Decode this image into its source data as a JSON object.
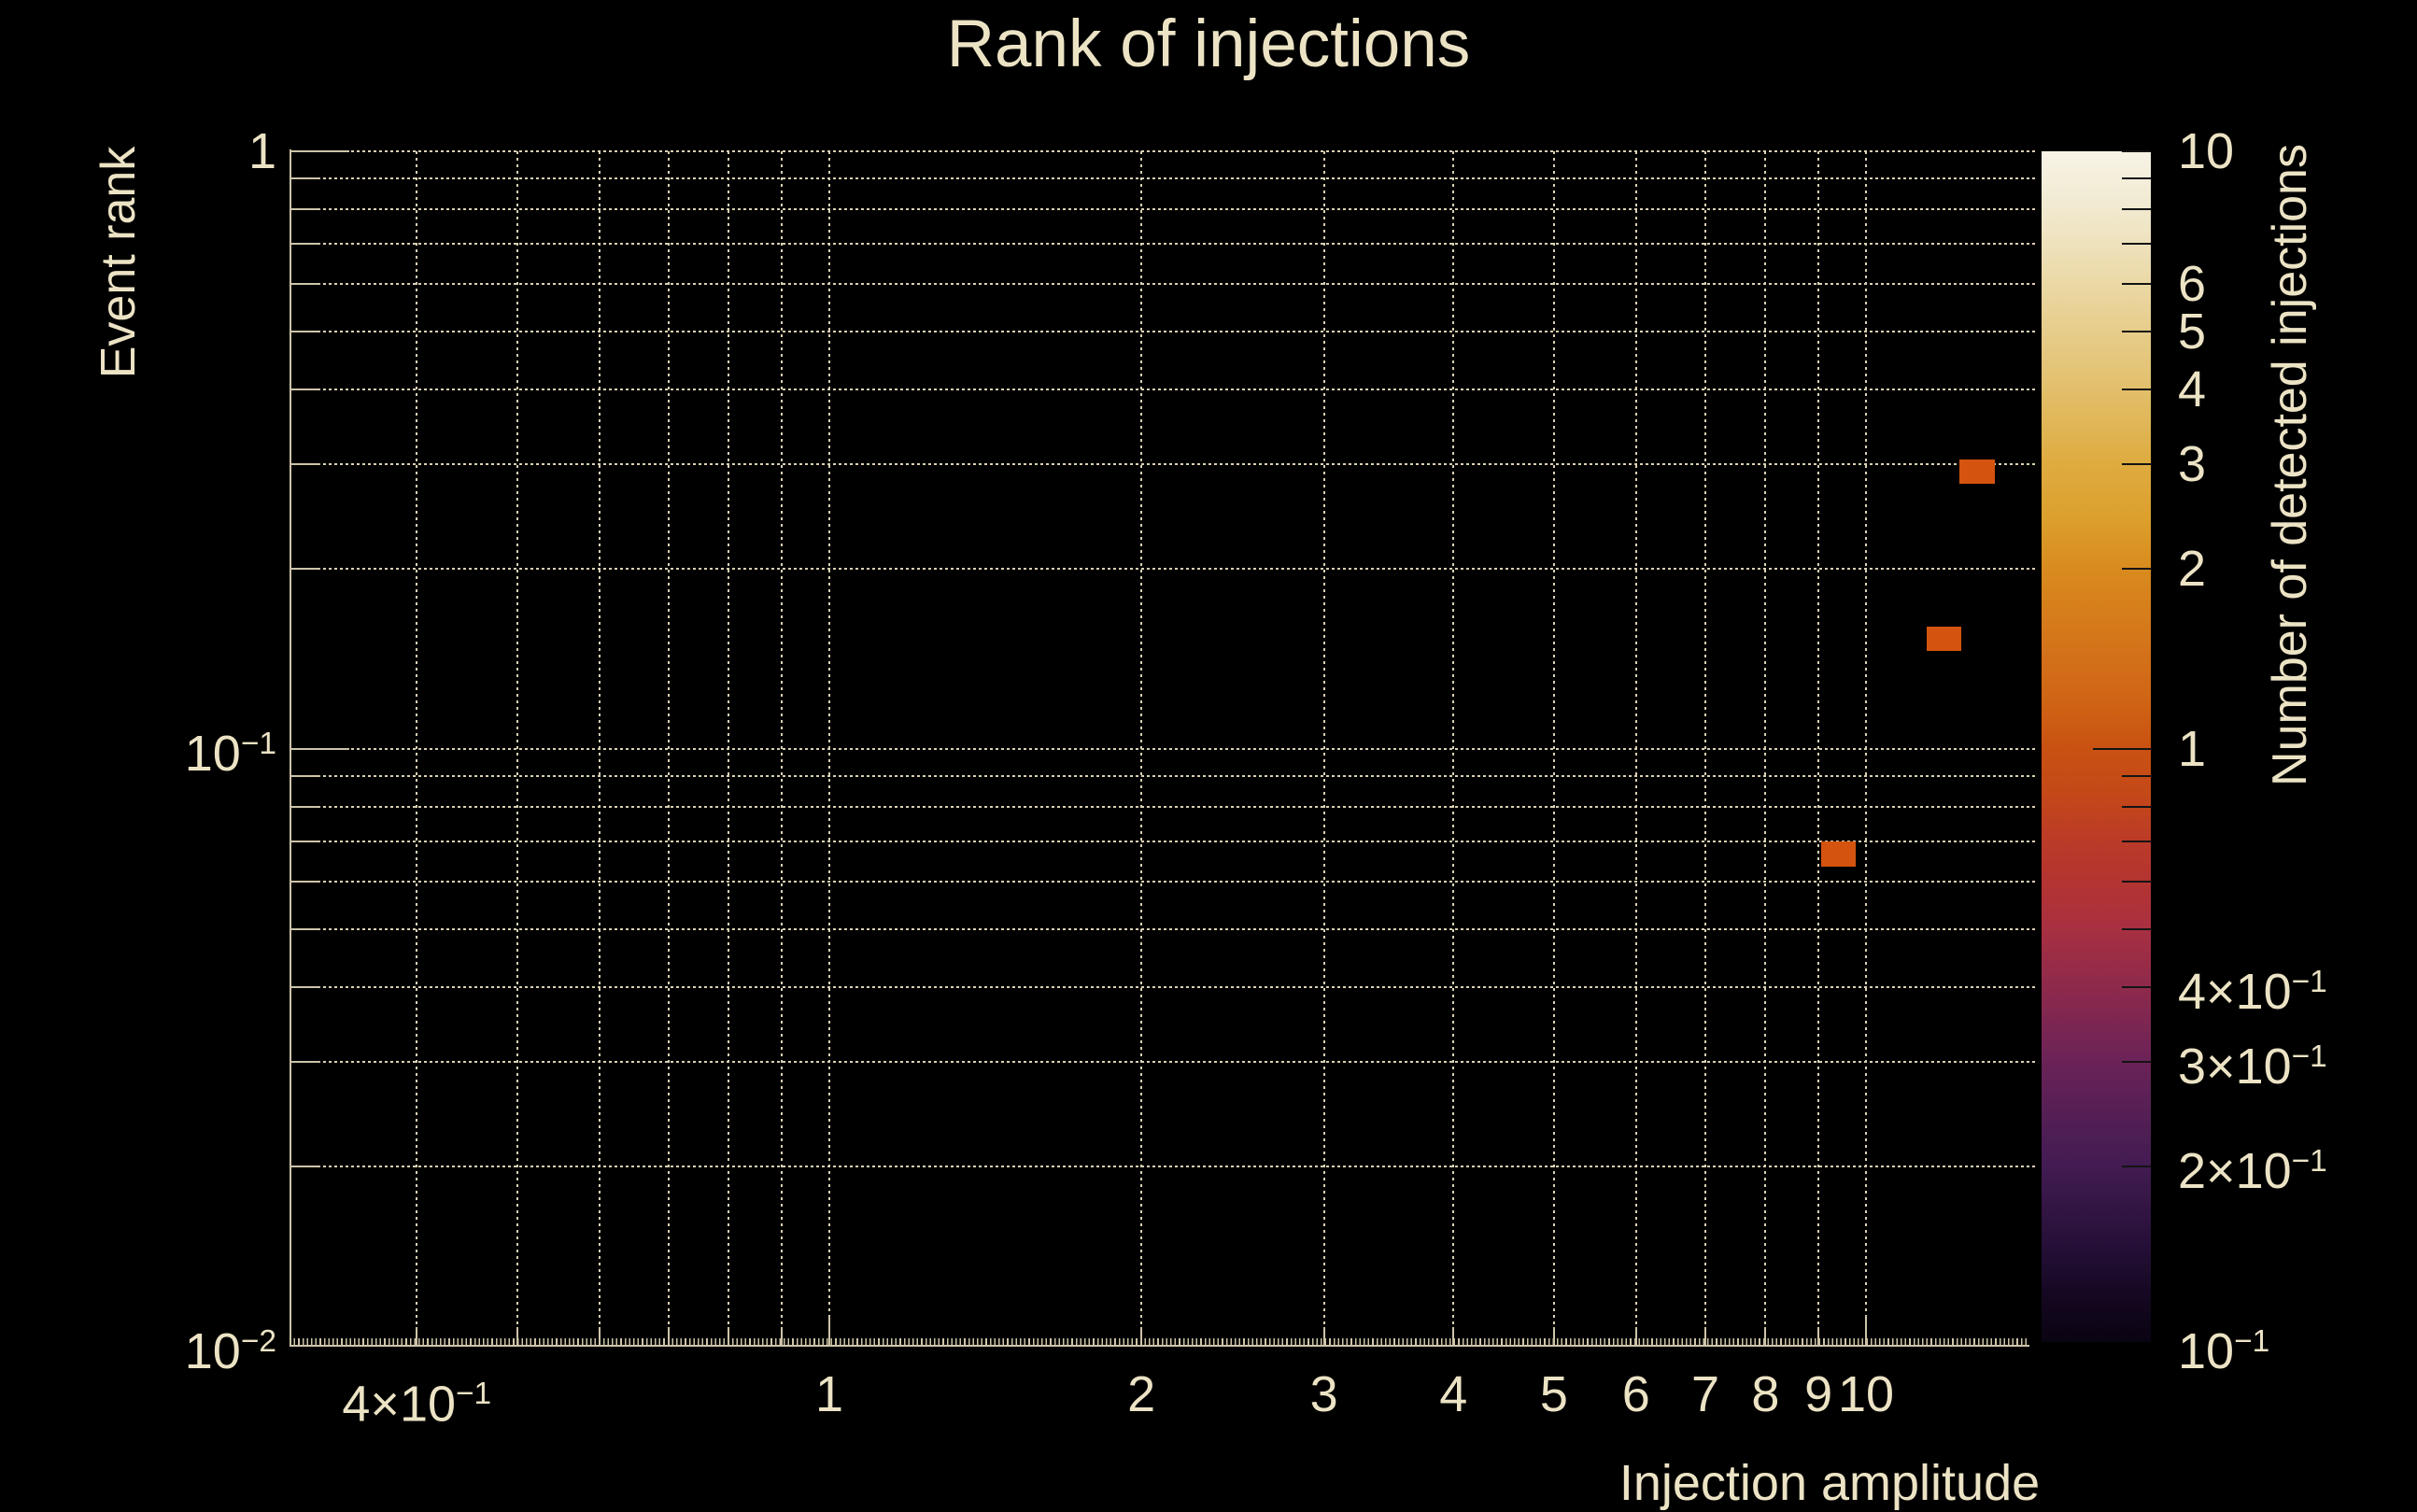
{
  "title": "Rank of injections",
  "colors": {
    "background": "#000000",
    "text": "#ece3c5",
    "grid": "#d9d0b3",
    "axis": "#cdc4a8",
    "cell_fill": "#d4530f",
    "colorbar_tick": "#141414"
  },
  "chart_data": {
    "type": "heatmap",
    "title": "Rank of injections",
    "xlabel": "Injection amplitude",
    "ylabel": "Event rank",
    "zlabel": "Number of detected injections",
    "x_scale": "log",
    "y_scale": "log",
    "z_scale": "log",
    "xlim": [
      0.3,
      14.8
    ],
    "ylim": [
      0.01,
      1
    ],
    "zlim": [
      0.1,
      10
    ],
    "grid": true,
    "legend_position": "right-colorbar",
    "x_grid": [
      0.4,
      0.5,
      0.6,
      0.7,
      0.8,
      0.9,
      1,
      2,
      3,
      4,
      5,
      6,
      7,
      8,
      9,
      10
    ],
    "y_grid": [
      1,
      0.9,
      0.8,
      0.7,
      0.6,
      0.5,
      0.4,
      0.3,
      0.2,
      0.1,
      0.09,
      0.08,
      0.07,
      0.06,
      0.05,
      0.04,
      0.03,
      0.02
    ],
    "z_ticks": [
      10,
      9,
      8,
      7,
      6,
      5,
      4,
      3,
      2,
      1,
      0.9,
      0.8,
      0.7,
      0.6,
      0.5,
      0.4,
      0.3,
      0.2
    ],
    "x_major": [
      1,
      10
    ],
    "y_major": [
      1,
      0.1,
      0.01
    ],
    "z_major": [
      1
    ],
    "x_tick_labels": [
      {
        "v": 0.4,
        "t": "4×10",
        "s": "−1"
      },
      {
        "v": 1,
        "t": "1"
      },
      {
        "v": 2,
        "t": "2"
      },
      {
        "v": 3,
        "t": "3"
      },
      {
        "v": 4,
        "t": "4"
      },
      {
        "v": 5,
        "t": "5"
      },
      {
        "v": 6,
        "t": "6"
      },
      {
        "v": 7,
        "t": "7"
      },
      {
        "v": 8,
        "t": "8"
      },
      {
        "v": 9,
        "t": "9"
      },
      {
        "v": 10,
        "t": "10"
      }
    ],
    "y_tick_labels": [
      {
        "v": 1,
        "t": "1"
      },
      {
        "v": 0.1,
        "t": "10",
        "s": "−1"
      },
      {
        "v": 0.01,
        "t": "10",
        "s": "−2"
      }
    ],
    "z_tick_labels": [
      {
        "v": 10,
        "t": "10"
      },
      {
        "v": 6,
        "t": "6"
      },
      {
        "v": 5,
        "t": "5"
      },
      {
        "v": 4,
        "t": "4"
      },
      {
        "v": 3,
        "t": "3"
      },
      {
        "v": 2,
        "t": "2"
      },
      {
        "v": 1,
        "t": "1"
      },
      {
        "v": 0.4,
        "t": "4×10",
        "s": "−1"
      },
      {
        "v": 0.3,
        "t": "3×10",
        "s": "−1"
      },
      {
        "v": 0.2,
        "t": "2×10",
        "s": "−1"
      },
      {
        "v": 0.1,
        "t": "10",
        "s": "−1"
      }
    ],
    "points": [
      {
        "x": 12.8,
        "y": 0.291,
        "count": 1
      },
      {
        "x": 11.9,
        "y": 0.153,
        "count": 1
      },
      {
        "x": 9.4,
        "y": 0.0667,
        "count": 1
      }
    ],
    "bin_dlog_x": 0.0334,
    "bin_dlog_y": 0.041,
    "colorbar_stops": [
      {
        "p": 0,
        "c": "#f7f3e6"
      },
      {
        "p": 5,
        "c": "#f1e9cf"
      },
      {
        "p": 11,
        "c": "#ebd9a6"
      },
      {
        "p": 16,
        "c": "#e6ca85"
      },
      {
        "p": 20,
        "c": "#e2bf6b"
      },
      {
        "p": 26,
        "c": "#dfac41"
      },
      {
        "p": 31,
        "c": "#dc9f2c"
      },
      {
        "p": 35,
        "c": "#d98b1e"
      },
      {
        "p": 42,
        "c": "#d3721a"
      },
      {
        "p": 46,
        "c": "#d06515"
      },
      {
        "p": 50,
        "c": "#c95212"
      },
      {
        "p": 54,
        "c": "#c44818"
      },
      {
        "p": 58,
        "c": "#bb3a28"
      },
      {
        "p": 62,
        "c": "#b23333"
      },
      {
        "p": 65,
        "c": "#a93040"
      },
      {
        "p": 70,
        "c": "#8f2a4b"
      },
      {
        "p": 76,
        "c": "#6d2357"
      },
      {
        "p": 81,
        "c": "#541f55"
      },
      {
        "p": 85,
        "c": "#431c53"
      },
      {
        "p": 92,
        "c": "#250f37"
      },
      {
        "p": 96,
        "c": "#150822"
      },
      {
        "p": 100,
        "c": "#0a0312"
      }
    ]
  }
}
